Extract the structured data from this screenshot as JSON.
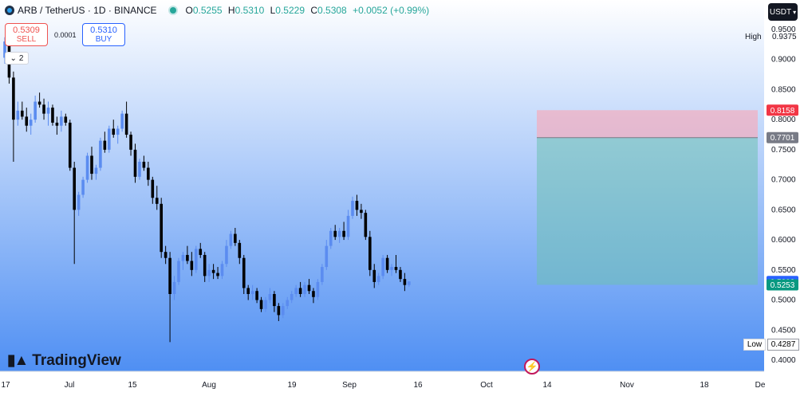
{
  "header": {
    "symbol": "ARB / TetherUS · 1D · BINANCE",
    "o_key": "O",
    "o_val": "0.5255",
    "h_key": "H",
    "h_val": "0.5310",
    "l_key": "L",
    "l_val": "0.5229",
    "c_key": "C",
    "c_val": "0.5308",
    "change": "+0.0052 (+0.99%)"
  },
  "trade": {
    "sell_price": "0.5309",
    "sell_label": "SELL",
    "spread": "0.0001",
    "buy_price": "0.5310",
    "buy_label": "BUY"
  },
  "indicators_toggle": "2",
  "currency": "USDT",
  "high_label": "High",
  "high_value": "0.9375",
  "low_label": "Low",
  "low_value": "0.4287",
  "brand": "TradingView",
  "colors": {
    "up": "#5b8cf0",
    "down": "#000000",
    "stop": "#ef5350",
    "target": "#26a69a",
    "bg_top": "#ffffff",
    "bg_bottom": "#4f8ff3"
  },
  "chart_data": {
    "type": "candlestick",
    "y_range": [
      0.38,
      0.96
    ],
    "y_ticks": [
      "0.9500",
      "0.9000",
      "0.8500",
      "0.8000",
      "0.7500",
      "0.7000",
      "0.6500",
      "0.6000",
      "0.5500",
      "0.5000",
      "0.4500",
      "0.4000"
    ],
    "x_ticks": [
      "17",
      "Jul",
      "15",
      "Aug",
      "19",
      "Sep",
      "16",
      "Oct",
      "14",
      "Nov",
      "18",
      "De"
    ],
    "price_tags": [
      {
        "value": 0.8158,
        "text": "0.8158",
        "color": "#f23645"
      },
      {
        "value": 0.7701,
        "text": "0.7701",
        "color": "#787b86"
      },
      {
        "value": 0.5308,
        "text": "0.5308",
        "color": "#2962ff"
      },
      {
        "value": 0.5253,
        "text": "0.5253",
        "color": "#089981"
      }
    ],
    "position": {
      "type": "long",
      "entry": 0.5253,
      "target": 0.7701,
      "stop": 0.8158
    },
    "candles": [
      [
        0.903,
        0.937,
        0.893,
        0.93
      ],
      [
        0.93,
        0.937,
        0.86,
        0.87
      ],
      [
        0.87,
        0.88,
        0.73,
        0.8
      ],
      [
        0.8,
        0.83,
        0.79,
        0.815
      ],
      [
        0.815,
        0.83,
        0.8,
        0.805
      ],
      [
        0.805,
        0.82,
        0.78,
        0.79
      ],
      [
        0.79,
        0.81,
        0.775,
        0.8
      ],
      [
        0.8,
        0.84,
        0.795,
        0.83
      ],
      [
        0.83,
        0.845,
        0.82,
        0.825
      ],
      [
        0.825,
        0.835,
        0.8,
        0.81
      ],
      [
        0.81,
        0.83,
        0.79,
        0.82
      ],
      [
        0.82,
        0.825,
        0.79,
        0.795
      ],
      [
        0.795,
        0.805,
        0.775,
        0.79
      ],
      [
        0.79,
        0.815,
        0.78,
        0.805
      ],
      [
        0.805,
        0.81,
        0.79,
        0.795
      ],
      [
        0.795,
        0.8,
        0.715,
        0.72
      ],
      [
        0.72,
        0.73,
        0.56,
        0.65
      ],
      [
        0.65,
        0.68,
        0.64,
        0.675
      ],
      [
        0.675,
        0.705,
        0.67,
        0.7
      ],
      [
        0.7,
        0.745,
        0.695,
        0.74
      ],
      [
        0.74,
        0.755,
        0.7,
        0.71
      ],
      [
        0.71,
        0.725,
        0.7,
        0.72
      ],
      [
        0.72,
        0.77,
        0.715,
        0.765
      ],
      [
        0.765,
        0.78,
        0.745,
        0.75
      ],
      [
        0.75,
        0.79,
        0.745,
        0.785
      ],
      [
        0.785,
        0.8,
        0.77,
        0.775
      ],
      [
        0.775,
        0.79,
        0.76,
        0.785
      ],
      [
        0.785,
        0.815,
        0.78,
        0.81
      ],
      [
        0.81,
        0.83,
        0.77,
        0.775
      ],
      [
        0.775,
        0.78,
        0.74,
        0.75
      ],
      [
        0.75,
        0.76,
        0.695,
        0.705
      ],
      [
        0.705,
        0.735,
        0.7,
        0.73
      ],
      [
        0.73,
        0.74,
        0.715,
        0.72
      ],
      [
        0.72,
        0.73,
        0.69,
        0.7
      ],
      [
        0.7,
        0.705,
        0.66,
        0.67
      ],
      [
        0.67,
        0.69,
        0.65,
        0.66
      ],
      [
        0.66,
        0.67,
        0.57,
        0.58
      ],
      [
        0.58,
        0.59,
        0.56,
        0.57
      ],
      [
        0.57,
        0.58,
        0.43,
        0.51
      ],
      [
        0.51,
        0.54,
        0.5,
        0.53
      ],
      [
        0.53,
        0.57,
        0.525,
        0.565
      ],
      [
        0.565,
        0.58,
        0.55,
        0.575
      ],
      [
        0.575,
        0.59,
        0.56,
        0.565
      ],
      [
        0.565,
        0.58,
        0.54,
        0.55
      ],
      [
        0.55,
        0.59,
        0.545,
        0.585
      ],
      [
        0.585,
        0.595,
        0.57,
        0.575
      ],
      [
        0.575,
        0.58,
        0.53,
        0.54
      ],
      [
        0.54,
        0.56,
        0.53,
        0.55
      ],
      [
        0.55,
        0.56,
        0.535,
        0.545
      ],
      [
        0.545,
        0.555,
        0.535,
        0.54
      ],
      [
        0.54,
        0.565,
        0.535,
        0.56
      ],
      [
        0.56,
        0.6,
        0.555,
        0.59
      ],
      [
        0.59,
        0.615,
        0.585,
        0.61
      ],
      [
        0.61,
        0.62,
        0.59,
        0.595
      ],
      [
        0.595,
        0.6,
        0.56,
        0.57
      ],
      [
        0.57,
        0.575,
        0.51,
        0.52
      ],
      [
        0.52,
        0.525,
        0.5,
        0.51
      ],
      [
        0.51,
        0.525,
        0.5,
        0.515
      ],
      [
        0.515,
        0.52,
        0.495,
        0.5
      ],
      [
        0.5,
        0.505,
        0.48,
        0.485
      ],
      [
        0.485,
        0.505,
        0.48,
        0.5
      ],
      [
        0.5,
        0.52,
        0.495,
        0.51
      ],
      [
        0.51,
        0.515,
        0.48,
        0.49
      ],
      [
        0.49,
        0.495,
        0.465,
        0.475
      ],
      [
        0.475,
        0.495,
        0.47,
        0.49
      ],
      [
        0.49,
        0.505,
        0.485,
        0.5
      ],
      [
        0.5,
        0.515,
        0.495,
        0.51
      ],
      [
        0.51,
        0.525,
        0.505,
        0.52
      ],
      [
        0.52,
        0.53,
        0.505,
        0.51
      ],
      [
        0.51,
        0.53,
        0.505,
        0.525
      ],
      [
        0.525,
        0.535,
        0.51,
        0.515
      ],
      [
        0.515,
        0.52,
        0.495,
        0.505
      ],
      [
        0.505,
        0.535,
        0.5,
        0.53
      ],
      [
        0.53,
        0.56,
        0.525,
        0.555
      ],
      [
        0.555,
        0.6,
        0.55,
        0.59
      ],
      [
        0.59,
        0.62,
        0.585,
        0.615
      ],
      [
        0.615,
        0.625,
        0.6,
        0.605
      ],
      [
        0.605,
        0.62,
        0.595,
        0.615
      ],
      [
        0.615,
        0.63,
        0.6,
        0.605
      ],
      [
        0.605,
        0.65,
        0.6,
        0.64
      ],
      [
        0.64,
        0.672,
        0.635,
        0.665
      ],
      [
        0.665,
        0.675,
        0.64,
        0.65
      ],
      [
        0.65,
        0.66,
        0.635,
        0.645
      ],
      [
        0.645,
        0.65,
        0.6,
        0.605
      ],
      [
        0.605,
        0.615,
        0.54,
        0.55
      ],
      [
        0.55,
        0.56,
        0.52,
        0.53
      ],
      [
        0.53,
        0.545,
        0.525,
        0.54
      ],
      [
        0.54,
        0.575,
        0.535,
        0.57
      ],
      [
        0.57,
        0.575,
        0.545,
        0.55
      ],
      [
        0.55,
        0.56,
        0.54,
        0.555
      ],
      [
        0.555,
        0.575,
        0.545,
        0.55
      ],
      [
        0.55,
        0.555,
        0.53,
        0.535
      ],
      [
        0.535,
        0.545,
        0.515,
        0.525
      ],
      [
        0.525,
        0.531,
        0.522,
        0.531
      ]
    ]
  }
}
